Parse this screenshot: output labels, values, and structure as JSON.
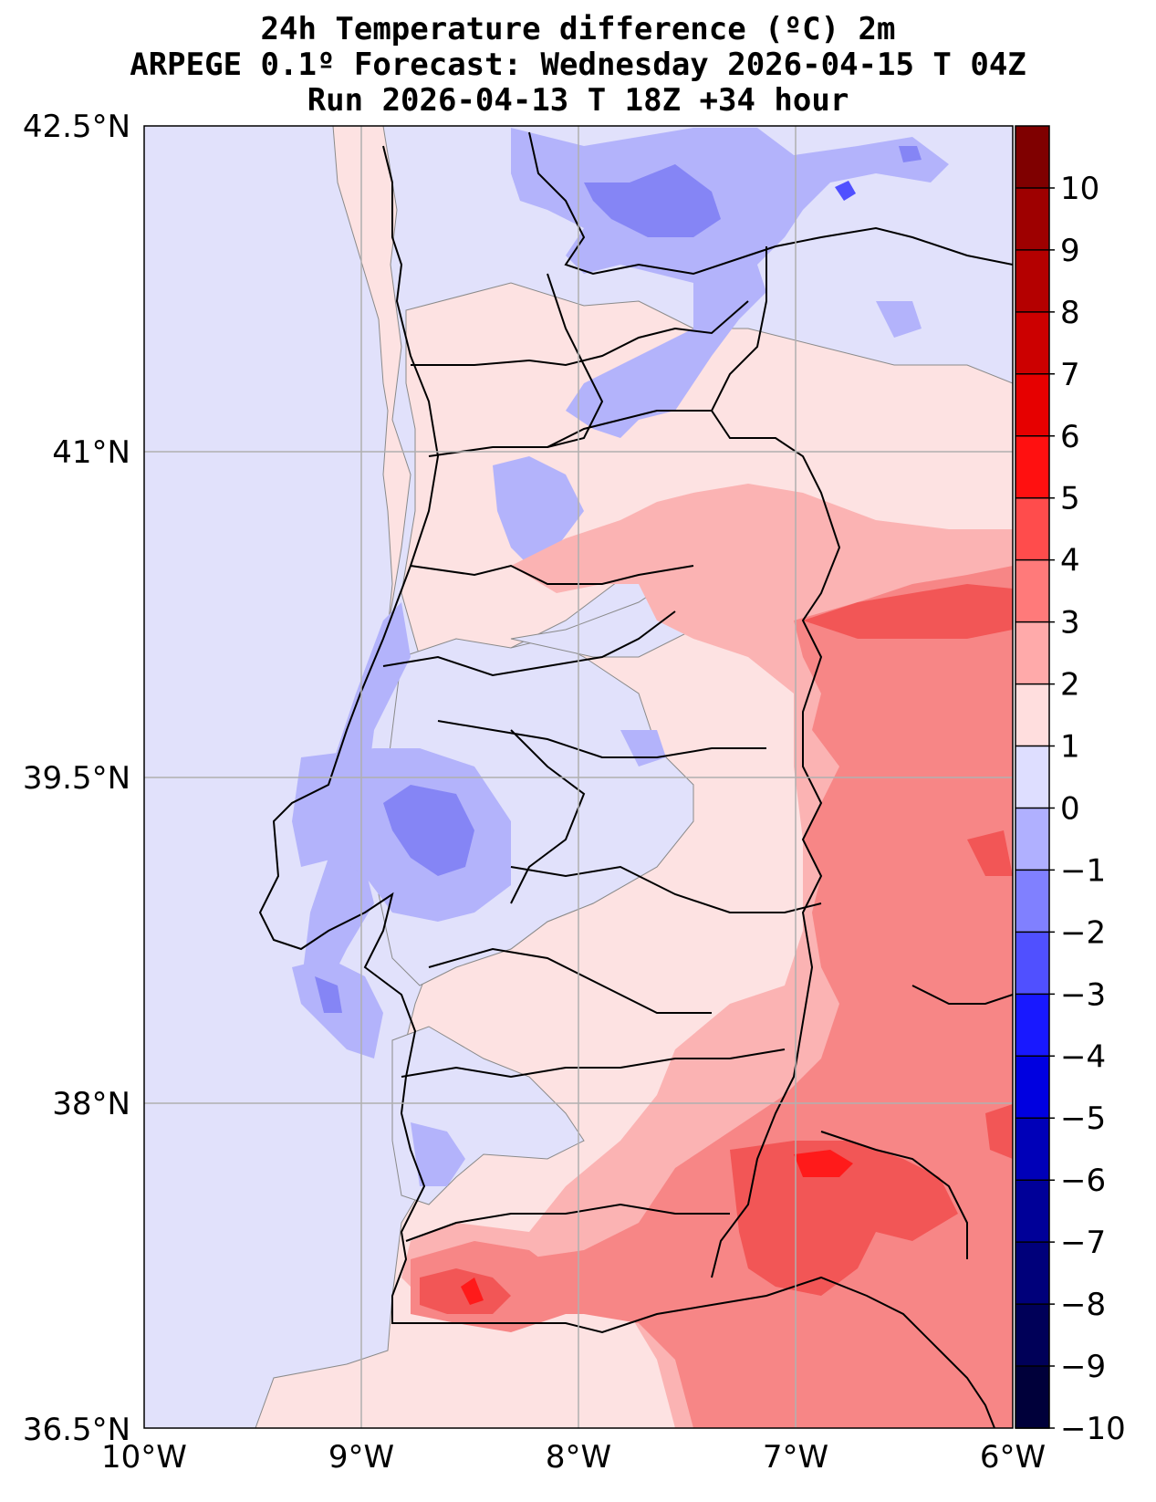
{
  "title": {
    "line1": "24h Temperature difference (ºC) 2m",
    "line2": "ARPEGE 0.1º Forecast: Wednesday 2026-04-15 T 04Z",
    "line3": "Run 2026-04-13 T 18Z +34 hour"
  },
  "axes": {
    "lat_labels": [
      "42.5°N",
      "41°N",
      "39.5°N",
      "38°N",
      "36.5°N"
    ],
    "lon_labels": [
      "10°W",
      "9°W",
      "8°W",
      "7°W",
      "6°W"
    ]
  },
  "colorbar": {
    "ticks": [
      "10",
      "9",
      "8",
      "7",
      "6",
      "5",
      "4",
      "3",
      "2",
      "1",
      "0",
      "−1",
      "−2",
      "−3",
      "−4",
      "−5",
      "−6",
      "−7",
      "−8",
      "−9",
      "−10"
    ],
    "colors": [
      "#7f0000",
      "#9e0000",
      "#b40000",
      "#cc0000",
      "#e60000",
      "#ff1010",
      "#ff4c4c",
      "#ff7a7a",
      "#ffaaaa",
      "#ffdede",
      "#dedeff",
      "#b0b0ff",
      "#8080ff",
      "#5050ff",
      "#1818ff",
      "#0000e0",
      "#0000b8",
      "#000098",
      "#00007a",
      "#000058",
      "#00003a"
    ]
  },
  "palette": {
    "neg1": "#e1e1fb",
    "neg2": "#b3b3fb",
    "neg3": "#8585f5",
    "pos1": "#fde2e2",
    "pos2": "#fbb3b3",
    "pos3": "#f78686",
    "pos4": "#f25656",
    "pos5": "#ff1a1a",
    "border": "#000000",
    "grid": "#b0b0b0"
  }
}
